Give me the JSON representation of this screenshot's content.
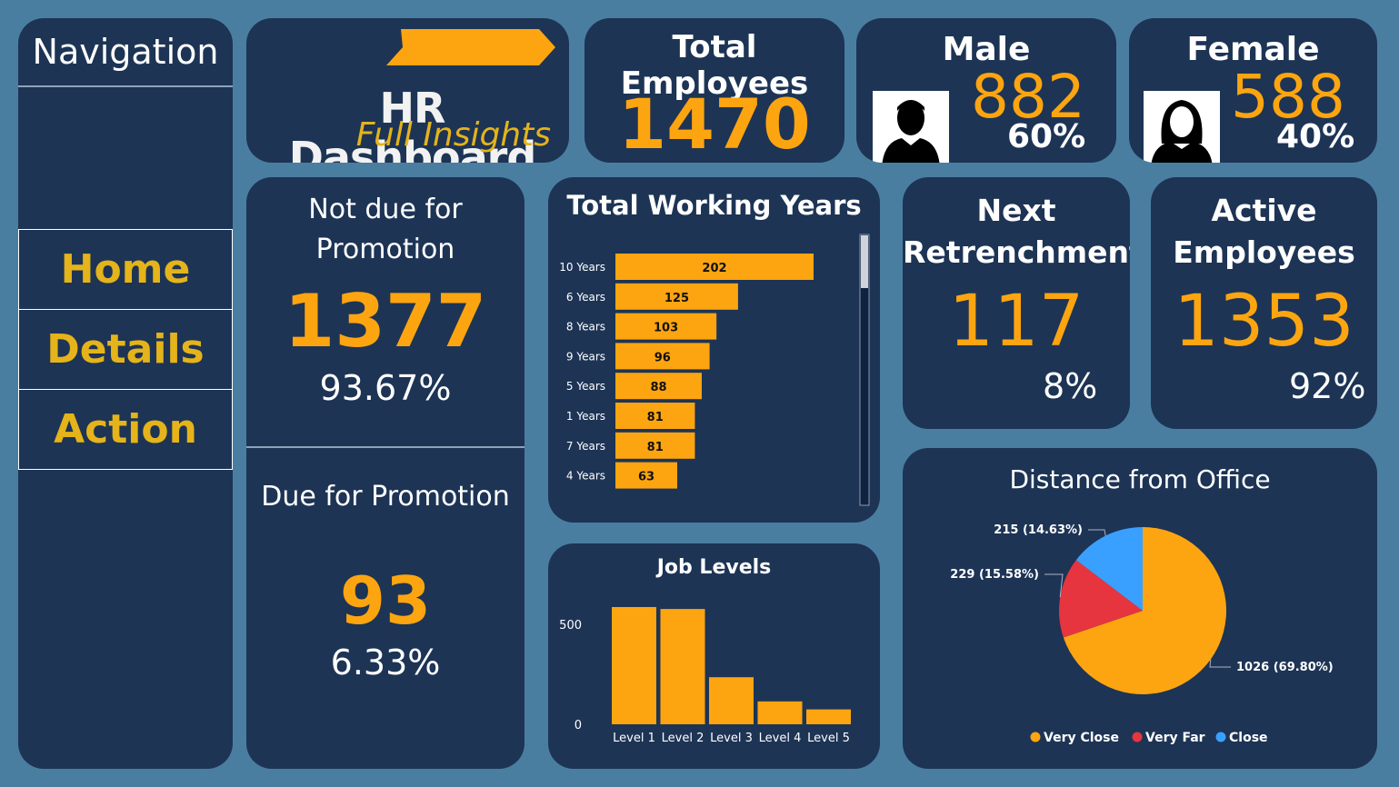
{
  "navigation": {
    "title": "Navigation",
    "items": [
      {
        "label": "Home"
      },
      {
        "label": "Details"
      },
      {
        "label": "Action"
      }
    ]
  },
  "header": {
    "title": "HR Dashboard",
    "subtitle": "Full Insights",
    "accent_color": "#fda510"
  },
  "total_employees": {
    "title": "Total Employees",
    "value": "1470"
  },
  "male": {
    "title": "Male",
    "value": "882",
    "percent": "60%",
    "icon": "male-user-icon"
  },
  "female": {
    "title": "Female",
    "value": "588",
    "percent": "40%",
    "icon": "female-user-icon"
  },
  "promotion": {
    "not_due": {
      "title_line1": "Not due for",
      "title_line2": "Promotion",
      "value": "1377",
      "percent": "93.67%"
    },
    "due": {
      "title": "Due for Promotion",
      "value": "93",
      "percent": "6.33%"
    }
  },
  "next_retrenchment": {
    "title_line1": "Next",
    "title_line2": "Retrenchment",
    "value": "117",
    "percent": "8%"
  },
  "active_employees": {
    "title_line1": "Active",
    "title_line2": "Employees",
    "value": "1353",
    "percent": "92%"
  },
  "chart_data": [
    {
      "type": "bar",
      "orientation": "horizontal",
      "title": "Total Working Years",
      "categories": [
        "10 Years",
        "6 Years",
        "8 Years",
        "9 Years",
        "5 Years",
        "1 Years",
        "7 Years",
        "4 Years"
      ],
      "values": [
        202,
        125,
        103,
        96,
        88,
        81,
        81,
        63
      ],
      "data_labels": true,
      "scrollable": true,
      "color": "#fda510"
    },
    {
      "type": "bar",
      "title": "Job Levels",
      "categories": [
        "Level 1",
        "Level 2",
        "Level 3",
        "Level 4",
        "Level 5"
      ],
      "values": [
        543,
        534,
        218,
        106,
        69
      ],
      "yticks": [
        "0",
        "500"
      ],
      "ylim": [
        0,
        600
      ],
      "color": "#fda510"
    },
    {
      "type": "pie",
      "title": "Distance from Office",
      "slices": [
        {
          "name": "Very Close",
          "value": 1026,
          "label": "1026 (69.80%)",
          "color": "#fda510"
        },
        {
          "name": "Very Far",
          "value": 229,
          "label": "229 (15.58%)",
          "color": "#e6353f"
        },
        {
          "name": "Close",
          "value": 215,
          "label": "215 (14.63%)",
          "color": "#3aa0ff"
        }
      ],
      "legend": "bottom"
    }
  ]
}
